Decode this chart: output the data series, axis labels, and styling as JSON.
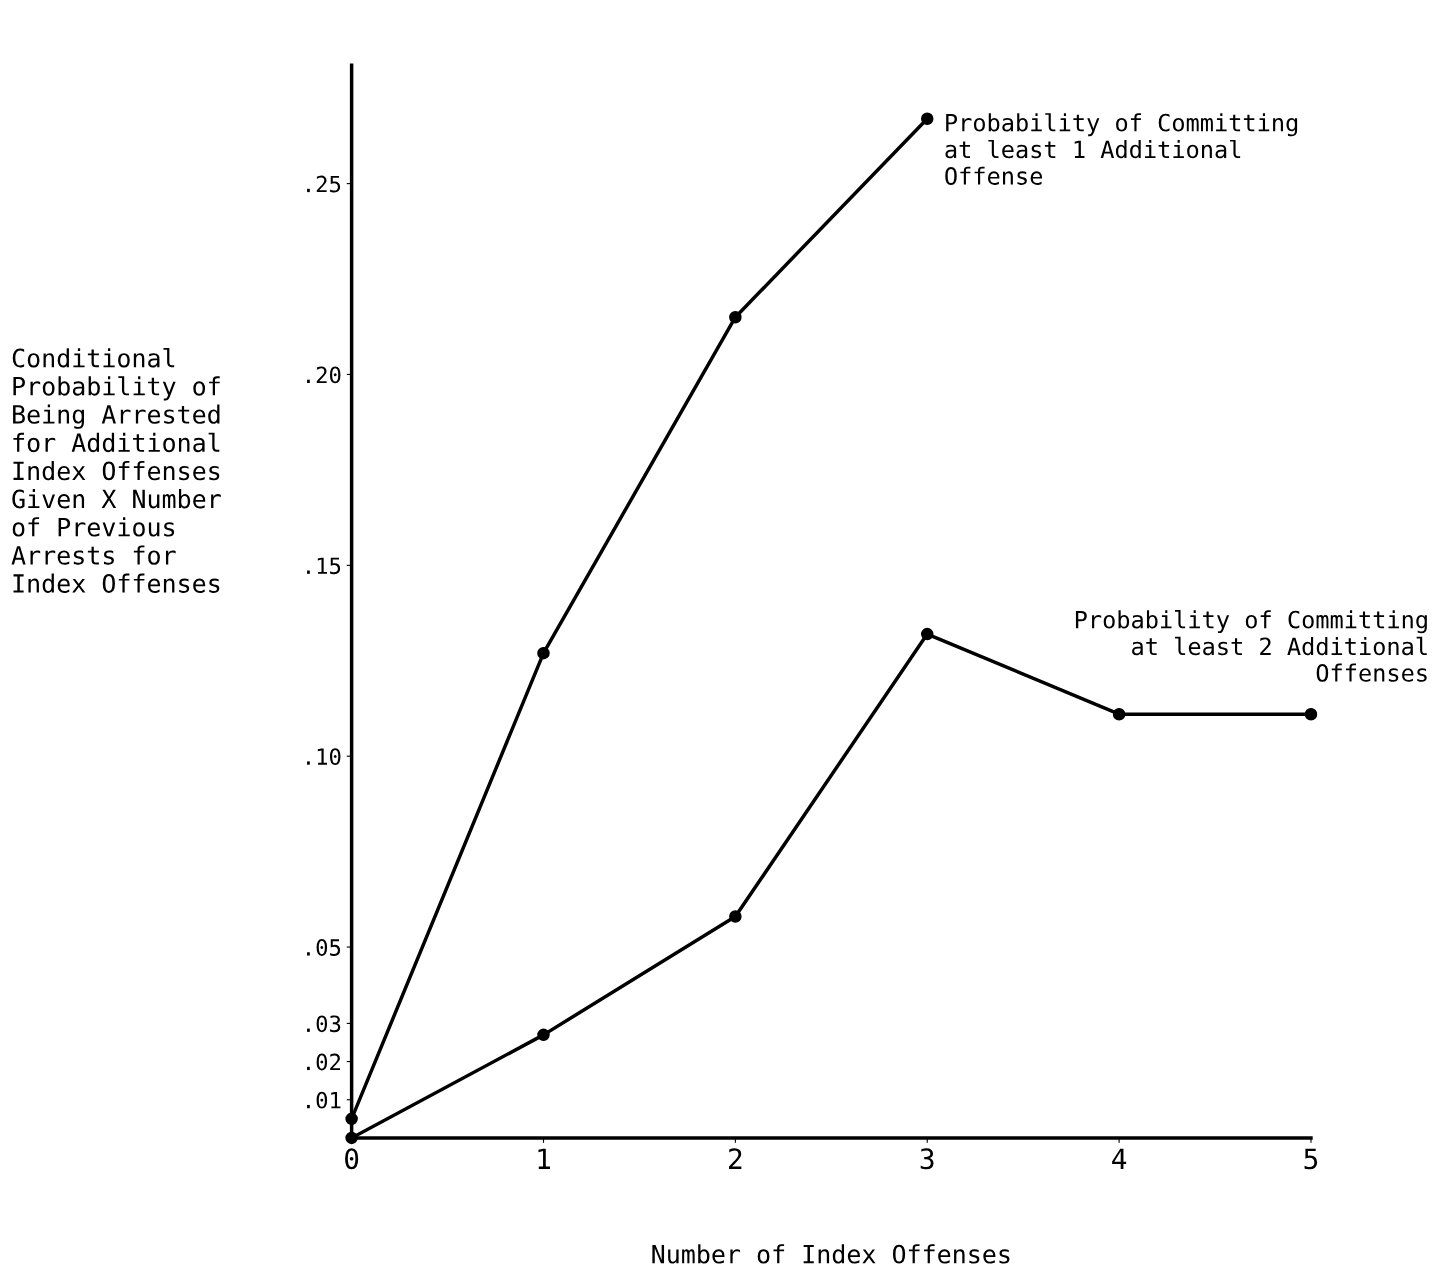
{
  "chart_data": {
    "type": "line",
    "xlabel": "Number of Index Offenses",
    "ylabel": "Conditional\nProbability of\nBeing Arrested\nfor Additional\nIndex Offenses\nGiven X Number\nof Previous\nArrests for\nIndex Offenses",
    "x": [
      0,
      1,
      2,
      3,
      4,
      5
    ],
    "series": [
      {
        "name": "Probability of Committing\nat least 1 Additional\nOffense",
        "color": "#000000",
        "x": [
          0,
          1,
          2,
          3
        ],
        "values": [
          0.005,
          0.127,
          0.215,
          0.267
        ]
      },
      {
        "name": "Probability of Committing\nat least 2 Additional\nOffenses",
        "color": "#000000",
        "values": [
          0,
          0.027,
          0.058,
          0.132,
          0.111,
          0.111
        ]
      }
    ],
    "xlim": [
      0,
      5
    ],
    "xticks": [
      0,
      1,
      2,
      3,
      4,
      5
    ],
    "ylim": [
      0,
      0.281
    ],
    "yticks": [
      {
        "value": 0.01,
        "label": ".01"
      },
      {
        "value": 0.02,
        "label": ".02"
      },
      {
        "value": 0.03,
        "label": ".03"
      },
      {
        "value": 0.05,
        "label": ".05"
      },
      {
        "value": 0.1,
        "label": ".10"
      },
      {
        "value": 0.15,
        "label": ".15"
      },
      {
        "value": 0.2,
        "label": ".20"
      },
      {
        "value": 0.25,
        "label": ".25"
      }
    ],
    "marker": "circle",
    "line_style": "solid",
    "grid": false,
    "legend": false
  }
}
